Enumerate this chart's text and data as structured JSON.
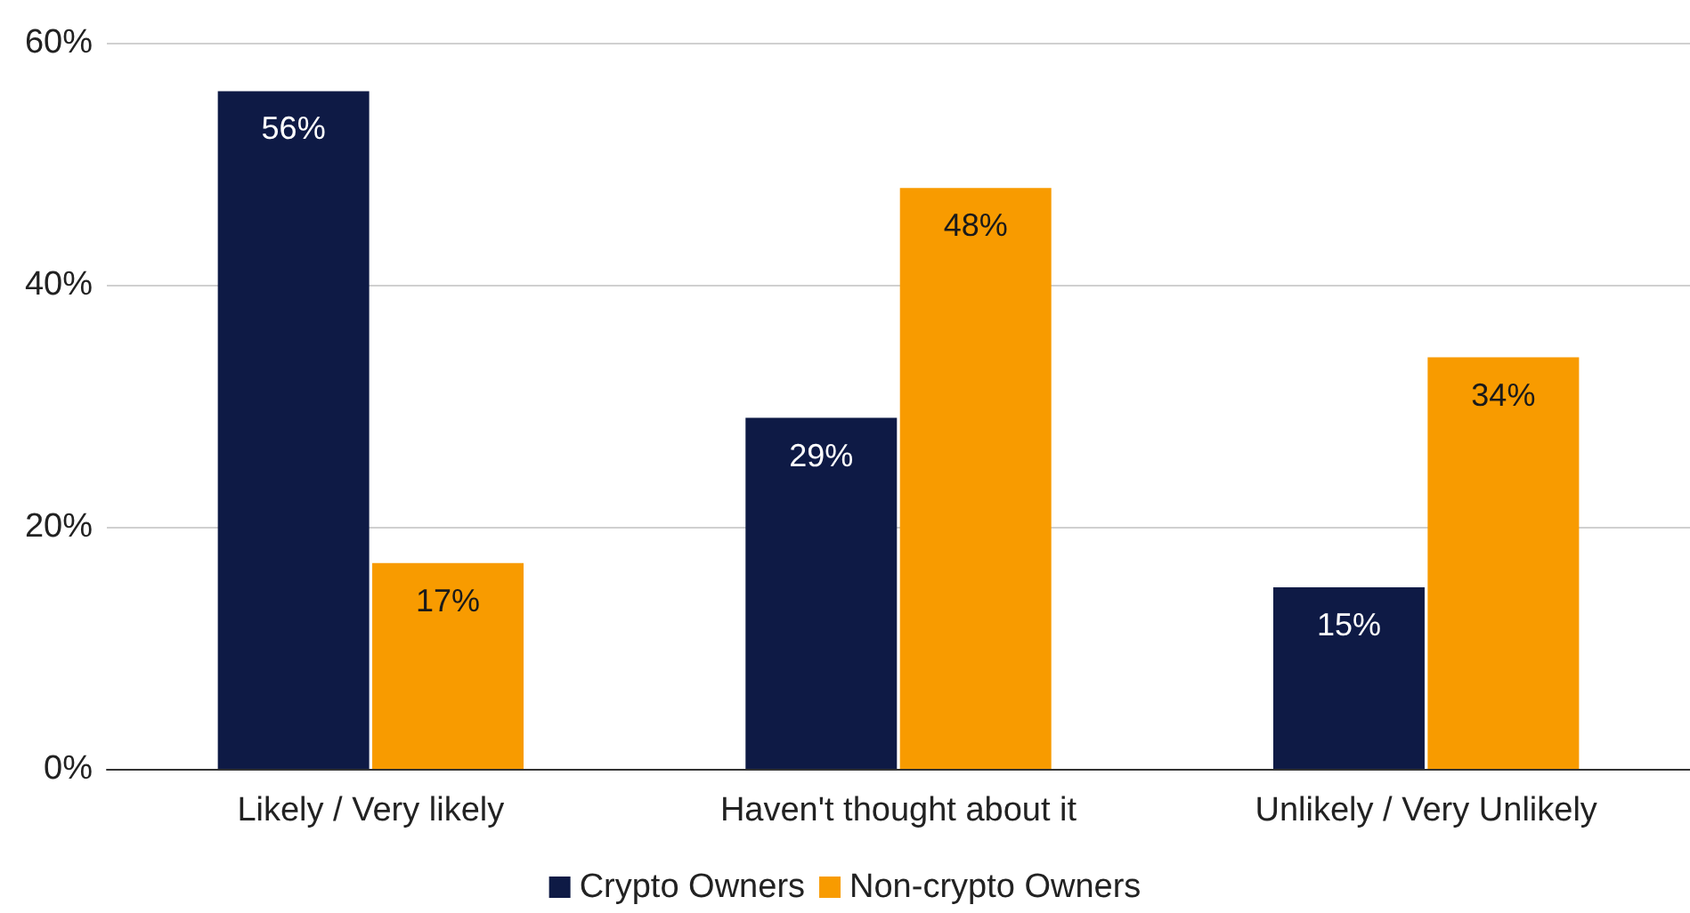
{
  "chart_data": {
    "type": "bar",
    "categories": [
      "Likely / Very likely",
      "Haven't thought about it",
      "Unlikely / Very Unlikely"
    ],
    "series": [
      {
        "name": "Crypto Owners",
        "color": "#0e1a45",
        "values": [
          56,
          29,
          15
        ],
        "value_labels": [
          "56%",
          "29%",
          "15%"
        ]
      },
      {
        "name": "Non-crypto Owners",
        "color": "#f89b00",
        "values": [
          17,
          48,
          34
        ],
        "value_labels": [
          "17%",
          "48%",
          "34%"
        ]
      }
    ],
    "ylim": [
      0,
      60
    ],
    "yticks": [
      {
        "value": 0,
        "label": "0%"
      },
      {
        "value": 20,
        "label": "20%"
      },
      {
        "value": 40,
        "label": "40%"
      },
      {
        "value": 60,
        "label": "60%"
      }
    ],
    "grid": "y",
    "legend": "bottom"
  }
}
